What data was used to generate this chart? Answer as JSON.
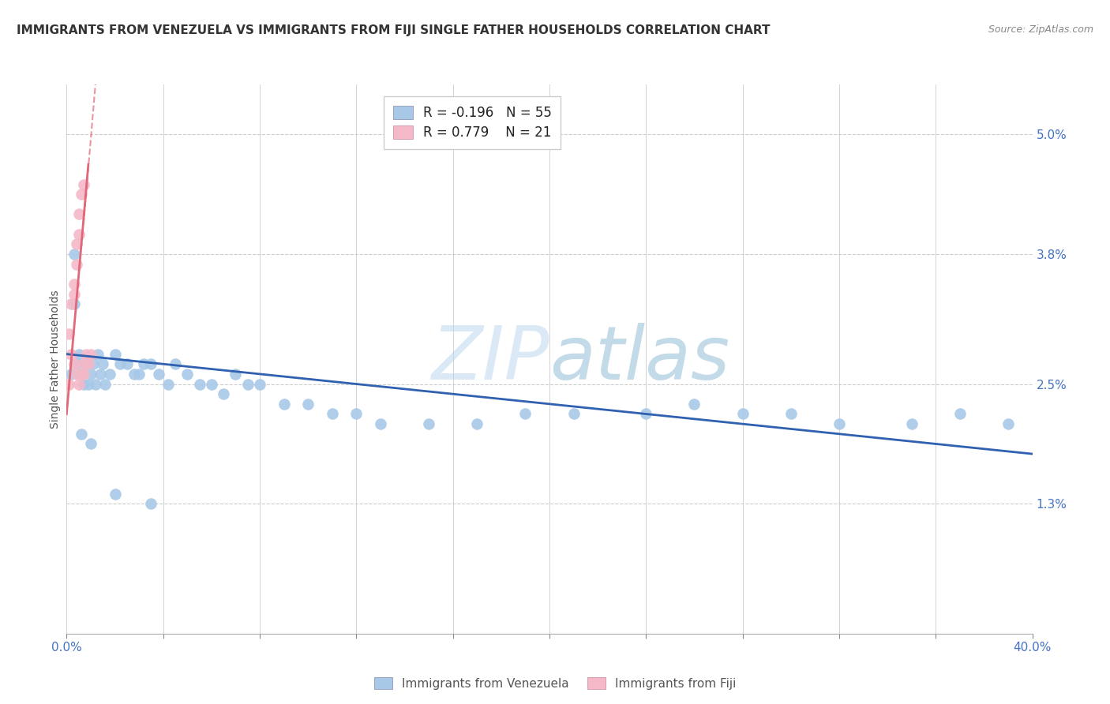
{
  "title": "IMMIGRANTS FROM VENEZUELA VS IMMIGRANTS FROM FIJI SINGLE FATHER HOUSEHOLDS CORRELATION CHART",
  "source": "Source: ZipAtlas.com",
  "ylabel": "Single Father Households",
  "ytick_labels": [
    "1.3%",
    "2.5%",
    "3.8%",
    "5.0%"
  ],
  "ytick_values": [
    0.013,
    0.025,
    0.038,
    0.05
  ],
  "xlim": [
    0.0,
    0.4
  ],
  "ylim": [
    0.0,
    0.055
  ],
  "xtick_positions": [
    0.0,
    0.04,
    0.08,
    0.12,
    0.16,
    0.2,
    0.24,
    0.28,
    0.32,
    0.36,
    0.4
  ],
  "legend_entries": [
    {
      "color": "#a8c8e8",
      "R": "-0.196",
      "N": "55"
    },
    {
      "color": "#f4b8c8",
      "R": "0.779",
      "N": "21"
    }
  ],
  "legend_labels": [
    "Immigrants from Venezuela",
    "Immigrants from Fiji"
  ],
  "background_color": "#ffffff",
  "grid_color": "#cccccc",
  "watermark_zip": "ZIP",
  "watermark_atlas": "atlas",
  "blue_line_color": "#3060b0",
  "pink_line_color": "#e06878",
  "scatter_blue": "#a8c8e8",
  "scatter_pink": "#f4b8c8",
  "title_fontsize": 11,
  "source_fontsize": 9,
  "venezuela_x": [
    0.002,
    0.003,
    0.004,
    0.005,
    0.006,
    0.007,
    0.008,
    0.009,
    0.01,
    0.011,
    0.012,
    0.013,
    0.014,
    0.015,
    0.016,
    0.018,
    0.02,
    0.022,
    0.025,
    0.028,
    0.03,
    0.032,
    0.035,
    0.038,
    0.042,
    0.045,
    0.05,
    0.055,
    0.06,
    0.065,
    0.07,
    0.075,
    0.08,
    0.09,
    0.1,
    0.11,
    0.12,
    0.13,
    0.15,
    0.17,
    0.19,
    0.21,
    0.24,
    0.26,
    0.28,
    0.3,
    0.32,
    0.35,
    0.37,
    0.39,
    0.003,
    0.006,
    0.01,
    0.02,
    0.035
  ],
  "venezuela_y": [
    0.026,
    0.033,
    0.027,
    0.028,
    0.026,
    0.025,
    0.027,
    0.025,
    0.026,
    0.027,
    0.025,
    0.028,
    0.026,
    0.027,
    0.025,
    0.026,
    0.028,
    0.027,
    0.027,
    0.026,
    0.026,
    0.027,
    0.027,
    0.026,
    0.025,
    0.027,
    0.026,
    0.025,
    0.025,
    0.024,
    0.026,
    0.025,
    0.025,
    0.023,
    0.023,
    0.022,
    0.022,
    0.021,
    0.021,
    0.021,
    0.022,
    0.022,
    0.022,
    0.023,
    0.022,
    0.022,
    0.021,
    0.021,
    0.022,
    0.021,
    0.038,
    0.02,
    0.019,
    0.014,
    0.013
  ],
  "fiji_x": [
    0.001,
    0.001,
    0.002,
    0.002,
    0.003,
    0.003,
    0.003,
    0.004,
    0.004,
    0.004,
    0.005,
    0.005,
    0.005,
    0.006,
    0.006,
    0.007,
    0.007,
    0.007,
    0.008,
    0.009,
    0.01
  ],
  "fiji_y": [
    0.025,
    0.03,
    0.028,
    0.033,
    0.034,
    0.035,
    0.027,
    0.037,
    0.039,
    0.026,
    0.04,
    0.042,
    0.025,
    0.044,
    0.026,
    0.045,
    0.026,
    0.027,
    0.028,
    0.027,
    0.028
  ],
  "blue_regression": [
    0.0,
    0.4,
    0.028,
    0.018
  ],
  "pink_regression_solid": [
    0.0,
    0.009,
    0.022,
    0.047
  ],
  "pink_regression_dashed": [
    0.007,
    0.013,
    0.041,
    0.058
  ]
}
